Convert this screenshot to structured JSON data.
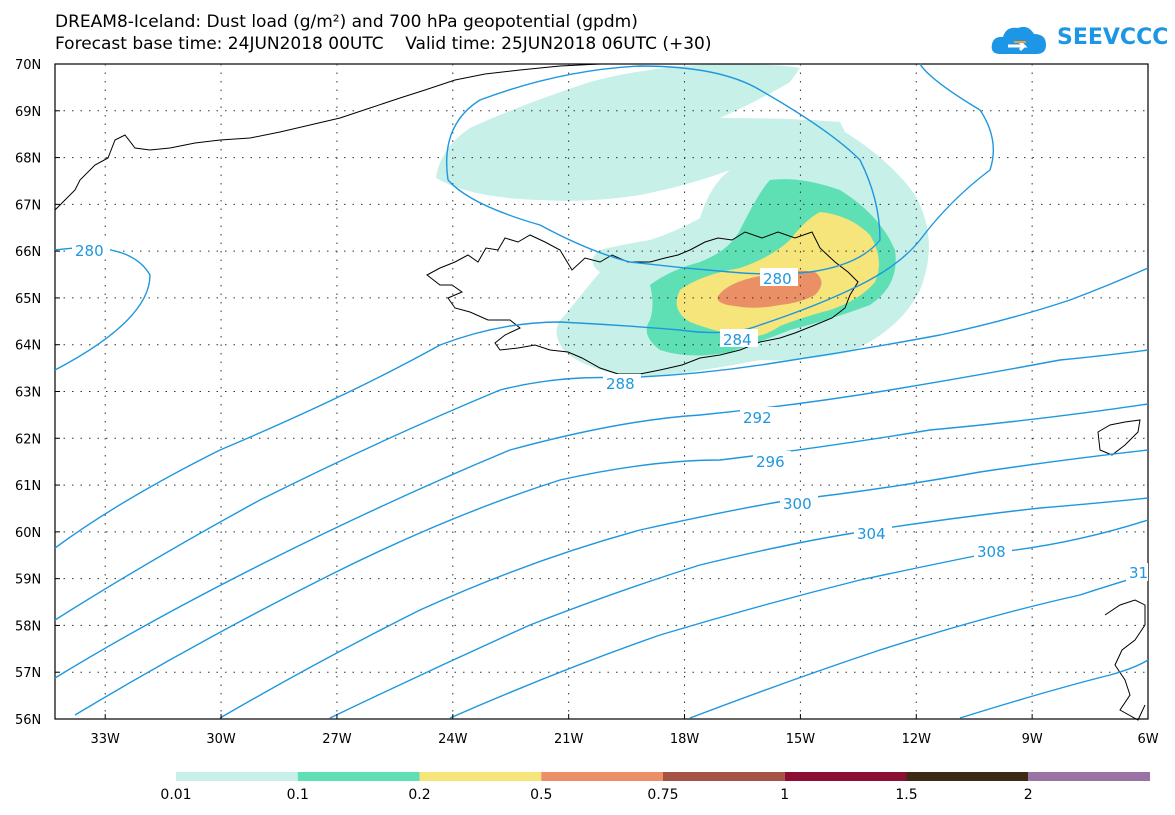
{
  "header": {
    "title_line1": "DREAM8-Iceland: Dust load (g/m²) and 700 hPa geopotential (gpdm)",
    "title_line2": "Forecast base time: 24JUN2018 00UTC    Valid time: 25JUN2018 06UTC (+30)"
  },
  "logo": {
    "text": "SEEVCCC",
    "icon": "cloud-icon",
    "color": "#1e96e6"
  },
  "map": {
    "lat_labels": [
      "70N",
      "69N",
      "68N",
      "67N",
      "66N",
      "65N",
      "64N",
      "63N",
      "62N",
      "61N",
      "60N",
      "59N",
      "58N",
      "57N",
      "56N"
    ],
    "lon_labels": [
      "33W",
      "30W",
      "27W",
      "24W",
      "21W",
      "18W",
      "15W",
      "12W",
      "9W",
      "6W"
    ],
    "contour_labels": [
      "280",
      "280",
      "284",
      "288",
      "292",
      "296",
      "300",
      "304",
      "308",
      "31"
    ],
    "contour_color": "#1f97df"
  },
  "legend": {
    "colors": [
      "#c6f0e8",
      "#5fe0b4",
      "#f6e57a",
      "#eb8f66",
      "#a55443",
      "#8a0f33",
      "#3d2a14",
      "#9b72a4"
    ],
    "labels": [
      "0.01",
      "0.1",
      "0.2",
      "0.5",
      "0.75",
      "1",
      "1.5",
      "2"
    ]
  }
}
